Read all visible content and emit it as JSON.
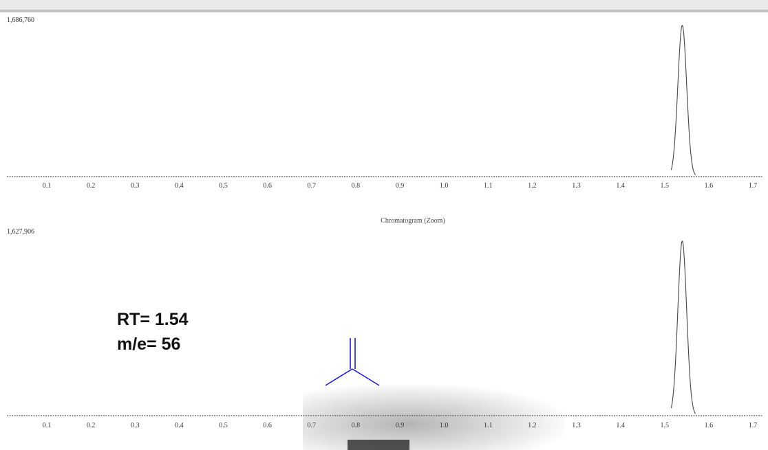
{
  "chart_data": [
    {
      "type": "line",
      "ymax_label": "1,686,760",
      "xtick_labels": [
        "0.1",
        "0.2",
        "0.3",
        "0.4",
        "0.5",
        "0.6",
        "0.7",
        "0.8",
        "0.9",
        "1.0",
        "1.1",
        "1.2",
        "1.3",
        "1.4",
        "1.5",
        "1.6",
        "1.7"
      ],
      "xlim": [
        0.03,
        1.78
      ],
      "peak": {
        "center": 1.54,
        "height": 1686760,
        "width": 0.01
      },
      "grid": false
    },
    {
      "type": "line",
      "title": "Chromatogram (Zoom)",
      "ymax_label": "1,627,906",
      "xtick_labels": [
        "0.1",
        "0.2",
        "0.3",
        "0.4",
        "0.5",
        "0.6",
        "0.7",
        "0.8",
        "0.9",
        "1.0",
        "1.1",
        "1.2",
        "1.3",
        "1.4",
        "1.5",
        "1.6",
        "1.7"
      ],
      "xlim": [
        0.03,
        1.78
      ],
      "peak": {
        "center": 1.54,
        "height": 1627906,
        "width": 0.01
      },
      "grid": false
    }
  ],
  "annotation": {
    "rt_text": "RT= 1.54",
    "me_text": "m/e= 56"
  },
  "structure_icon": "isobutylene-skeletal-structure-icon",
  "structure_color": "#1a1ae6"
}
